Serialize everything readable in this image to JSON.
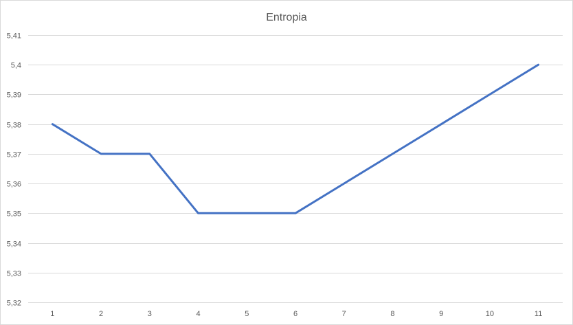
{
  "chart_data": {
    "type": "line",
    "title": "Entropia",
    "xlabel": "",
    "ylabel": "",
    "categories": [
      "1",
      "2",
      "3",
      "4",
      "5",
      "6",
      "7",
      "8",
      "9",
      "10",
      "11"
    ],
    "series": [
      {
        "values": [
          5.38,
          5.37,
          5.37,
          5.35,
          5.35,
          5.35,
          5.36,
          5.37,
          5.38,
          5.39,
          5.4
        ],
        "color": "#4472c4"
      }
    ],
    "ylim": [
      5.32,
      5.41
    ],
    "yticks": [
      "5,32",
      "5,33",
      "5,34",
      "5,35",
      "5,36",
      "5,37",
      "5,38",
      "5,39",
      "5,4",
      "5,41"
    ],
    "grid": true,
    "legend": "none"
  }
}
